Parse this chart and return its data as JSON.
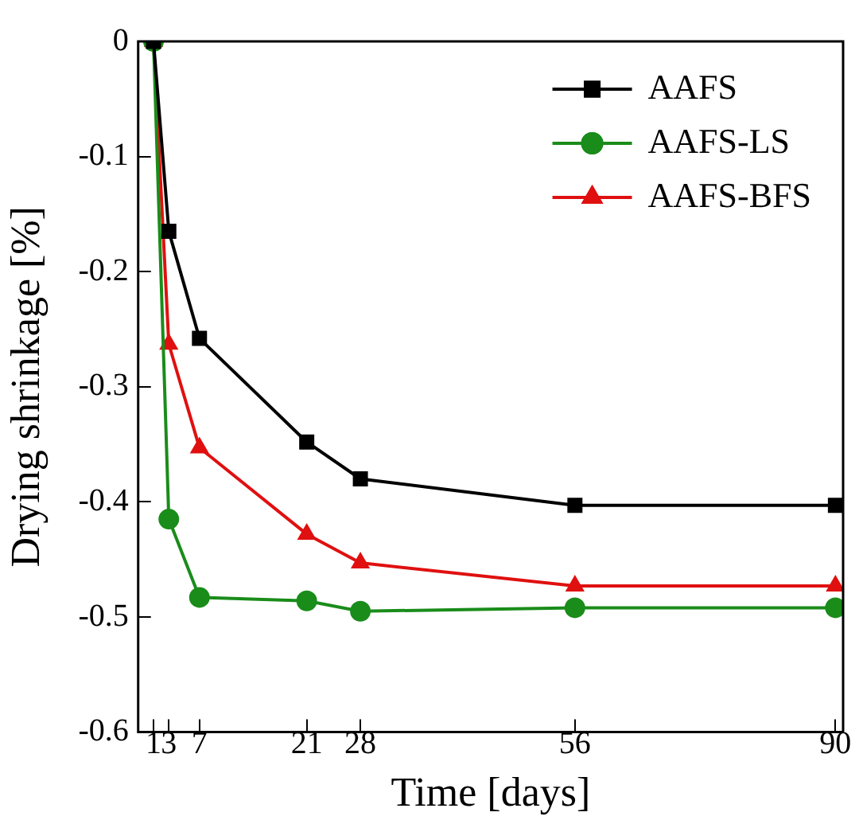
{
  "chart_data": {
    "type": "line",
    "xlabel": "Time [days]",
    "ylabel": "Drying shrinkage [%]",
    "x": [
      1,
      3,
      7,
      21,
      28,
      56,
      90
    ],
    "series": [
      {
        "name": "AAFS",
        "color": "#000000",
        "marker": "square",
        "values": [
          0,
          -0.165,
          -0.258,
          -0.348,
          -0.38,
          -0.403,
          -0.403
        ]
      },
      {
        "name": "AAFS-LS",
        "color": "#1a8c1a",
        "marker": "circle",
        "values": [
          0,
          -0.415,
          -0.483,
          -0.486,
          -0.495,
          -0.492,
          -0.492
        ]
      },
      {
        "name": "AAFS-BFS",
        "color": "#e01010",
        "marker": "triangle",
        "values": [
          0,
          -0.263,
          -0.353,
          -0.428,
          -0.453,
          -0.473,
          -0.473
        ]
      }
    ],
    "xlim": [
      -1,
      91
    ],
    "xticks": [
      1,
      3,
      7,
      21,
      28,
      56,
      90
    ],
    "ylim": [
      -0.6,
      0
    ],
    "yticks": [
      -0.6,
      -0.5,
      -0.4,
      -0.3,
      -0.2,
      -0.1,
      0
    ],
    "grid": false,
    "legend": "top right",
    "line_style": "solid"
  }
}
